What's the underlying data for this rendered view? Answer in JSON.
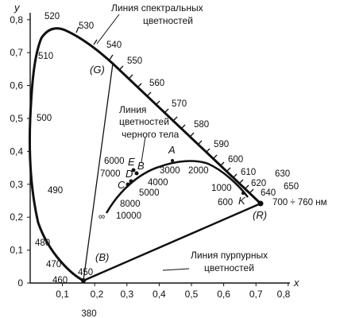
{
  "axes": {
    "x_label": "x",
    "y_label": "y",
    "x_ticks": [
      "0,1",
      "0,2",
      "0,3",
      "0,4",
      "0,5",
      "0,6",
      "0,7",
      "0,8"
    ],
    "y_ticks": [
      "0",
      "0,1",
      "0,2",
      "0,3",
      "0,4",
      "0,5",
      "0,6",
      "0,7",
      "0,8"
    ]
  },
  "wavelength_labels": [
    "380",
    "450",
    "460",
    "470",
    "480",
    "490",
    "500",
    "510",
    "520",
    "530",
    "540",
    "550",
    "560",
    "570",
    "580",
    "590",
    "600",
    "610",
    "620",
    "630",
    "640",
    "650",
    "700 ÷ 760 нм"
  ],
  "annotations": {
    "spectral_line": [
      "Линия спектральных",
      "цветностей"
    ],
    "black_body_line": [
      "Линия",
      "цветностей",
      "черного тела"
    ],
    "purple_line": [
      "Линия пурпурных",
      "цветностей"
    ]
  },
  "points": [
    "(G)",
    "(R)",
    "(B)",
    "A",
    "B",
    "C",
    "D",
    "E",
    "K"
  ],
  "temperatures": [
    "3000",
    "2000",
    "1000",
    "600",
    "4000",
    "5000",
    "6000",
    "7000",
    "8000",
    "10000",
    "∞"
  ],
  "colors": {
    "ink": "#111111",
    "background": "#ffffff"
  }
}
